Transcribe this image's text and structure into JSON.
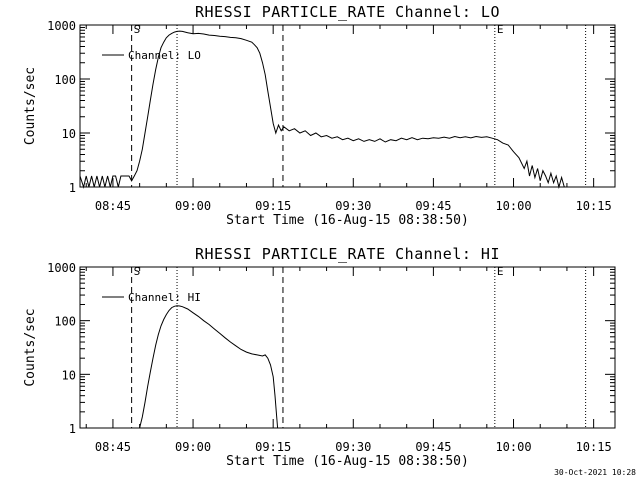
{
  "footer": {
    "timestamp": "30-Oct-2021 10:28"
  },
  "chart_data": [
    {
      "type": "line",
      "title": "RHESSI PARTICLE_RATE Channel: LO",
      "xlabel": "Start Time (16-Aug-15 08:38:50)",
      "ylabel": "Counts/sec",
      "log_y": true,
      "ylim": [
        1,
        1000
      ],
      "xlim": [
        "08:38:50",
        "10:19:00"
      ],
      "x_ticks": [
        "08:45",
        "09:00",
        "09:15",
        "09:30",
        "09:45",
        "10:00",
        "10:15"
      ],
      "y_ticks": [
        "1",
        "10",
        "100",
        "1000"
      ],
      "legend": {
        "position": "top-left",
        "entries": [
          "Channel: LO"
        ]
      },
      "markers": [
        {
          "time": "08:48:30",
          "label": "S",
          "style": "dashed"
        },
        {
          "time": "09:16:50",
          "label": "",
          "style": "dashed"
        },
        {
          "time": "08:57:00",
          "label": "",
          "style": "dotted"
        },
        {
          "time": "09:56:30",
          "label": "E",
          "style": "dotted"
        },
        {
          "time": "10:13:30",
          "label": "",
          "style": "dotted"
        }
      ],
      "series": [
        {
          "name": "Channel: LO",
          "points": [
            [
              "08:38:50",
              1.6
            ],
            [
              "08:39:30",
              1
            ],
            [
              "08:40:00",
              1.6
            ],
            [
              "08:40:30",
              1
            ],
            [
              "08:41:00",
              1.6
            ],
            [
              "08:41:30",
              1
            ],
            [
              "08:42:00",
              1.6
            ],
            [
              "08:42:30",
              1
            ],
            [
              "08:43:00",
              1.6
            ],
            [
              "08:43:30",
              1
            ],
            [
              "08:44:00",
              1.6
            ],
            [
              "08:44:30",
              1
            ],
            [
              "08:45:00",
              1.6
            ],
            [
              "08:45:30",
              1.6
            ],
            [
              "08:46:00",
              1
            ],
            [
              "08:46:30",
              1.6
            ],
            [
              "08:47:00",
              1.6
            ],
            [
              "08:47:30",
              1.6
            ],
            [
              "08:48:00",
              1.6
            ],
            [
              "08:48:30",
              1.3
            ],
            [
              "08:49:00",
              1.6
            ],
            [
              "08:49:30",
              2
            ],
            [
              "08:50:00",
              3
            ],
            [
              "08:50:30",
              5
            ],
            [
              "08:51:00",
              10
            ],
            [
              "08:51:30",
              20
            ],
            [
              "08:52:00",
              40
            ],
            [
              "08:52:30",
              80
            ],
            [
              "08:53:00",
              150
            ],
            [
              "08:53:30",
              250
            ],
            [
              "08:54:00",
              380
            ],
            [
              "08:54:30",
              480
            ],
            [
              "08:55:00",
              580
            ],
            [
              "08:55:30",
              650
            ],
            [
              "08:56:00",
              700
            ],
            [
              "08:56:30",
              740
            ],
            [
              "08:57:00",
              760
            ],
            [
              "08:57:30",
              770
            ],
            [
              "08:58:00",
              760
            ],
            [
              "08:59:00",
              720
            ],
            [
              "09:00:00",
              690
            ],
            [
              "09:01:00",
              700
            ],
            [
              "09:02:00",
              680
            ],
            [
              "09:03:00",
              650
            ],
            [
              "09:04:00",
              640
            ],
            [
              "09:05:00",
              620
            ],
            [
              "09:06:00",
              610
            ],
            [
              "09:07:00",
              590
            ],
            [
              "09:08:00",
              580
            ],
            [
              "09:09:00",
              560
            ],
            [
              "09:10:00",
              520
            ],
            [
              "09:11:00",
              480
            ],
            [
              "09:11:30",
              430
            ],
            [
              "09:12:00",
              380
            ],
            [
              "09:12:30",
              300
            ],
            [
              "09:13:00",
              200
            ],
            [
              "09:13:30",
              120
            ],
            [
              "09:14:00",
              60
            ],
            [
              "09:14:30",
              30
            ],
            [
              "09:15:00",
              15
            ],
            [
              "09:15:30",
              10
            ],
            [
              "09:16:00",
              14
            ],
            [
              "09:16:30",
              11
            ],
            [
              "09:17:00",
              13
            ],
            [
              "09:18:00",
              11
            ],
            [
              "09:19:00",
              12
            ],
            [
              "09:20:00",
              10
            ],
            [
              "09:21:00",
              11
            ],
            [
              "09:22:00",
              9
            ],
            [
              "09:23:00",
              10
            ],
            [
              "09:24:00",
              8.5
            ],
            [
              "09:25:00",
              9
            ],
            [
              "09:26:00",
              8
            ],
            [
              "09:27:00",
              8.5
            ],
            [
              "09:28:00",
              7.5
            ],
            [
              "09:29:00",
              8
            ],
            [
              "09:30:00",
              7.2
            ],
            [
              "09:31:00",
              7.8
            ],
            [
              "09:32:00",
              7
            ],
            [
              "09:33:00",
              7.5
            ],
            [
              "09:34:00",
              7
            ],
            [
              "09:35:00",
              7.8
            ],
            [
              "09:36:00",
              6.8
            ],
            [
              "09:37:00",
              7.5
            ],
            [
              "09:38:00",
              7.2
            ],
            [
              "09:39:00",
              8
            ],
            [
              "09:40:00",
              7.5
            ],
            [
              "09:41:00",
              8.2
            ],
            [
              "09:42:00",
              7.5
            ],
            [
              "09:43:00",
              8
            ],
            [
              "09:44:00",
              7.8
            ],
            [
              "09:45:00",
              8.2
            ],
            [
              "09:46:00",
              8
            ],
            [
              "09:47:00",
              8.4
            ],
            [
              "09:48:00",
              8
            ],
            [
              "09:49:00",
              8.6
            ],
            [
              "09:50:00",
              8.2
            ],
            [
              "09:51:00",
              8.5
            ],
            [
              "09:52:00",
              8.1
            ],
            [
              "09:53:00",
              8.6
            ],
            [
              "09:54:00",
              8.3
            ],
            [
              "09:55:00",
              8.5
            ],
            [
              "09:56:00",
              8
            ],
            [
              "09:57:00",
              7.5
            ],
            [
              "09:58:00",
              6.5
            ],
            [
              "09:59:00",
              6
            ],
            [
              "10:00:00",
              4.5
            ],
            [
              "10:01:00",
              3.5
            ],
            [
              "10:02:00",
              2.2
            ],
            [
              "10:02:30",
              3
            ],
            [
              "10:03:00",
              1.6
            ],
            [
              "10:03:30",
              2.5
            ],
            [
              "10:04:00",
              1.5
            ],
            [
              "10:04:30",
              2.2
            ],
            [
              "10:05:00",
              1.3
            ],
            [
              "10:05:30",
              2
            ],
            [
              "10:06:00",
              1.6
            ],
            [
              "10:06:30",
              1.2
            ],
            [
              "10:07:00",
              1.8
            ],
            [
              "10:07:30",
              1.2
            ],
            [
              "10:08:00",
              1.6
            ],
            [
              "10:08:30",
              1
            ],
            [
              "10:09:00",
              1.5
            ],
            [
              "10:09:30",
              1
            ]
          ]
        }
      ]
    },
    {
      "type": "line",
      "title": "RHESSI PARTICLE_RATE Channel: HI",
      "xlabel": "Start Time (16-Aug-15 08:38:50)",
      "ylabel": "Counts/sec",
      "log_y": true,
      "ylim": [
        1,
        1000
      ],
      "xlim": [
        "08:38:50",
        "10:19:00"
      ],
      "x_ticks": [
        "08:45",
        "09:00",
        "09:15",
        "09:30",
        "09:45",
        "10:00",
        "10:15"
      ],
      "y_ticks": [
        "1",
        "10",
        "100",
        "1000"
      ],
      "legend": {
        "position": "top-left",
        "entries": [
          "Channel: HI"
        ]
      },
      "markers": [
        {
          "time": "08:48:30",
          "label": "S",
          "style": "dashed"
        },
        {
          "time": "09:16:50",
          "label": "",
          "style": "dashed"
        },
        {
          "time": "08:57:00",
          "label": "",
          "style": "dotted"
        },
        {
          "time": "09:56:30",
          "label": "E",
          "style": "dotted"
        },
        {
          "time": "10:13:30",
          "label": "",
          "style": "dotted"
        }
      ],
      "series": [
        {
          "name": "Channel: HI",
          "points": [
            [
              "08:50:00",
              1
            ],
            [
              "08:50:30",
              1.6
            ],
            [
              "08:51:00",
              3
            ],
            [
              "08:51:30",
              6
            ],
            [
              "08:52:00",
              11
            ],
            [
              "08:52:30",
              20
            ],
            [
              "08:53:00",
              35
            ],
            [
              "08:53:30",
              55
            ],
            [
              "08:54:00",
              80
            ],
            [
              "08:54:30",
              105
            ],
            [
              "08:55:00",
              130
            ],
            [
              "08:55:30",
              155
            ],
            [
              "08:56:00",
              175
            ],
            [
              "08:56:30",
              185
            ],
            [
              "08:57:00",
              190
            ],
            [
              "08:57:30",
              188
            ],
            [
              "08:58:00",
              182
            ],
            [
              "08:59:00",
              165
            ],
            [
              "09:00:00",
              140
            ],
            [
              "09:01:00",
              120
            ],
            [
              "09:02:00",
              100
            ],
            [
              "09:03:00",
              85
            ],
            [
              "09:04:00",
              70
            ],
            [
              "09:05:00",
              58
            ],
            [
              "09:06:00",
              48
            ],
            [
              "09:07:00",
              40
            ],
            [
              "09:08:00",
              34
            ],
            [
              "09:09:00",
              29
            ],
            [
              "09:10:00",
              26
            ],
            [
              "09:11:00",
              24
            ],
            [
              "09:12:00",
              23
            ],
            [
              "09:13:00",
              22
            ],
            [
              "09:13:30",
              23
            ],
            [
              "09:14:00",
              20
            ],
            [
              "09:14:30",
              15
            ],
            [
              "09:15:00",
              9
            ],
            [
              "09:15:20",
              4
            ],
            [
              "09:15:40",
              1.6
            ],
            [
              "09:15:50",
              1
            ]
          ]
        }
      ]
    }
  ]
}
